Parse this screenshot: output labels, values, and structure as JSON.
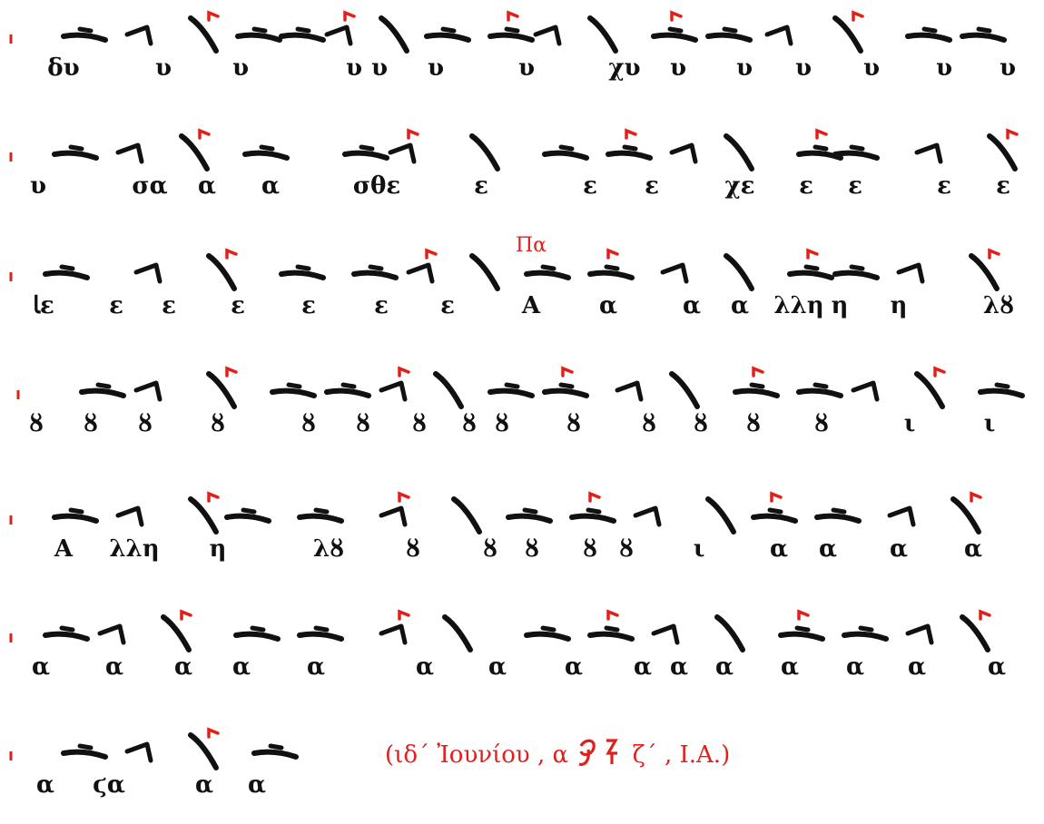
{
  "rows": [
    {
      "syllables": [
        "δυ",
        "υ",
        "υ",
        "υ",
        "υ",
        "υ",
        "υ",
        "χυ",
        "υ",
        "υ",
        "υ",
        "υ",
        "υ",
        "υ"
      ]
    },
    {
      "syllables": [
        "υ",
        "σα",
        "α",
        "α",
        "σθε",
        "ε",
        "ε",
        "ε",
        "χε",
        "ε",
        "ε",
        "ε",
        "ε"
      ]
    },
    {
      "syllables": [
        "ﺎε",
        "ε",
        "ε",
        "ε",
        "ε",
        "ε",
        "ε",
        "Α",
        "α",
        "α",
        "α",
        "λλη",
        "η",
        "η",
        "λȣ"
      ]
    },
    {
      "syllables": [
        "ȣ",
        "ȣ",
        "ȣ",
        "ȣ",
        "ȣ",
        "ȣ",
        "ȣ",
        "ȣ",
        "ȣ",
        "ȣ",
        "ȣ",
        "ȣ",
        "ȣ",
        "ȣ",
        "ι",
        "ι"
      ]
    },
    {
      "syllables": [
        "Α",
        "λλη",
        "η",
        "λȣ",
        "ȣ",
        "ȣ",
        "ȣ",
        "ȣ",
        "ȣ",
        "ι",
        "α",
        "α",
        "α",
        "α"
      ]
    },
    {
      "syllables": [
        "α",
        "α",
        "α",
        "α",
        "α",
        "α",
        "α",
        "α",
        "α",
        "α",
        "α",
        "α",
        "α",
        "α",
        "α"
      ]
    },
    {
      "syllables": [
        "α",
        "ϛα",
        "α",
        "α"
      ]
    }
  ],
  "martyria_label": "Πα",
  "colophon": {
    "prefix": "(ιδ´ Ἰουνίου , α",
    "suffix": "ζ´ , Ι.Α.)"
  },
  "colors": {
    "ink": "#111111",
    "rubric": "#e0201b"
  }
}
